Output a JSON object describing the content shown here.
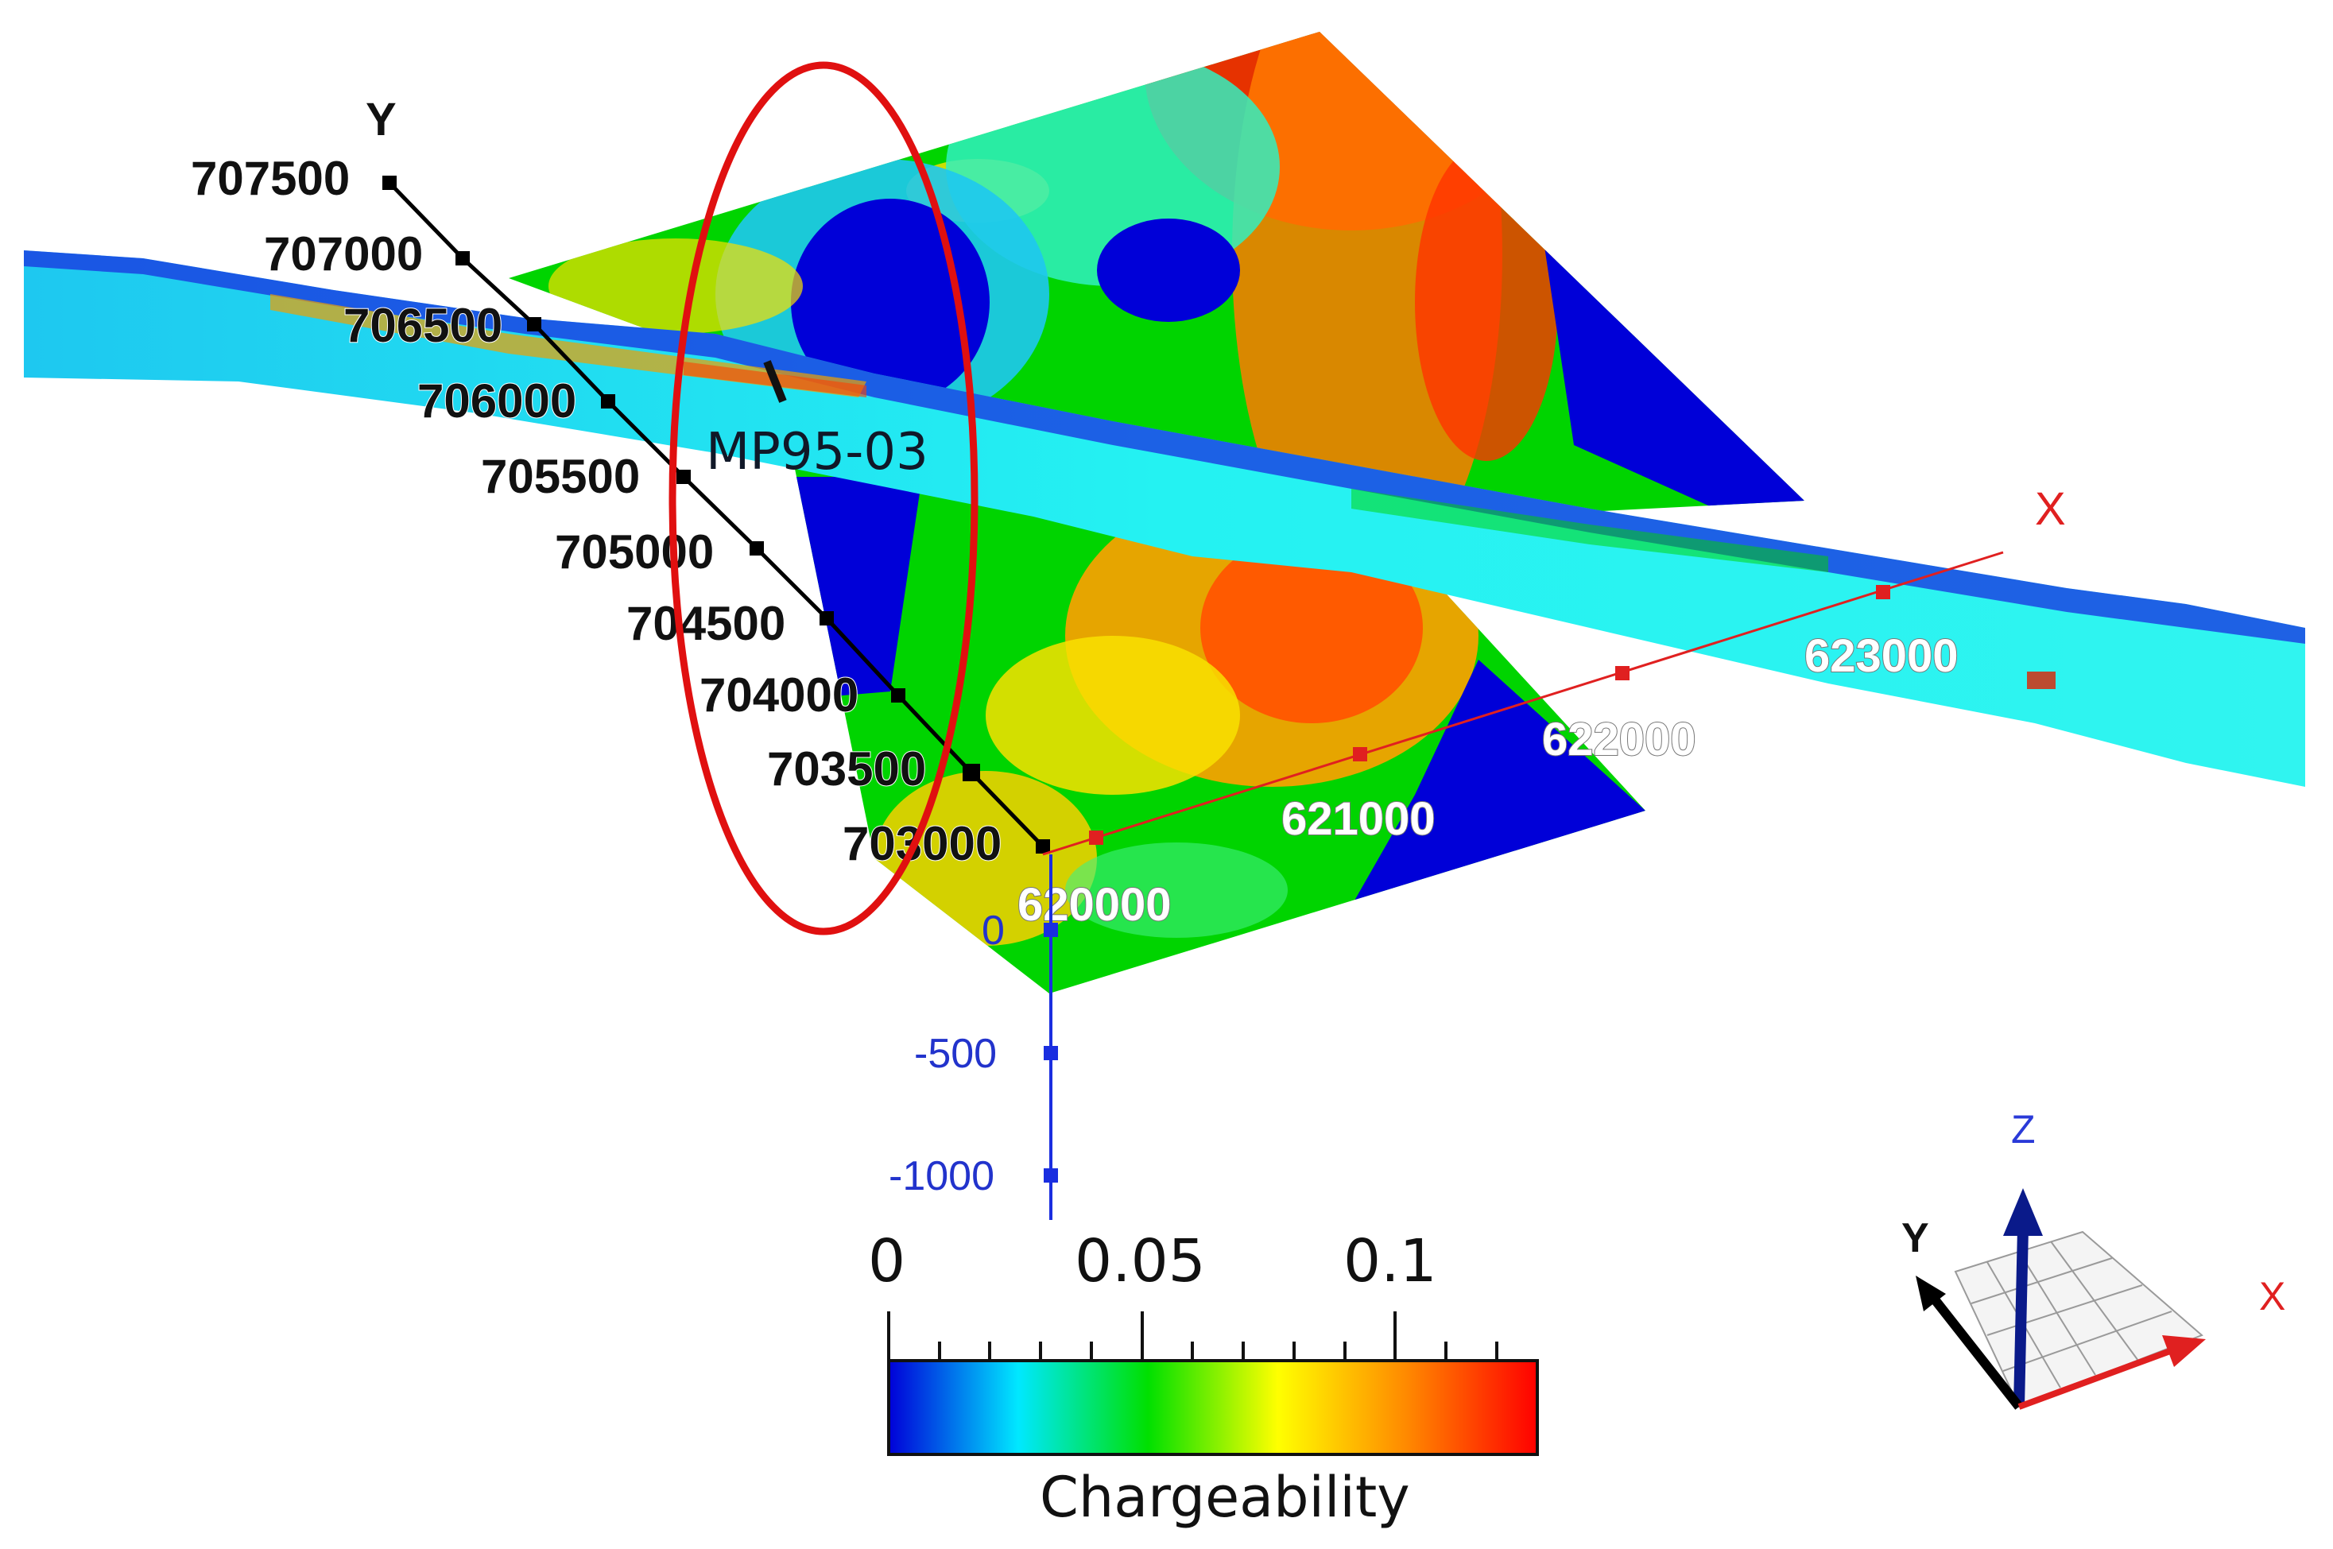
{
  "well": {
    "label": "MP95-03"
  },
  "axes": {
    "x": {
      "letter": "X",
      "ticks": [
        "620000",
        "621000",
        "622000",
        "623000"
      ]
    },
    "y": {
      "letter": "Y",
      "ticks": [
        "707500",
        "707000",
        "706500",
        "706000",
        "705500",
        "705000",
        "704500",
        "704000",
        "703500",
        "703000"
      ]
    },
    "z": {
      "ticks": [
        "0",
        "-500",
        "-1000"
      ]
    }
  },
  "legend": {
    "title": "Chargeability",
    "ticks": [
      "0",
      "0.05",
      "0.1"
    ],
    "colors": [
      "#0000d8",
      "#00e8ff",
      "#00e000",
      "#ffff00",
      "#ff8800",
      "#ff0000"
    ]
  },
  "orientation": {
    "x": "X",
    "y": "Y",
    "z": "Z"
  },
  "colors": {
    "x_axis": "#e02020",
    "y_axis": "#000000",
    "z_axis": "#1a2ee0",
    "highlight_ellipse": "#e01010"
  }
}
